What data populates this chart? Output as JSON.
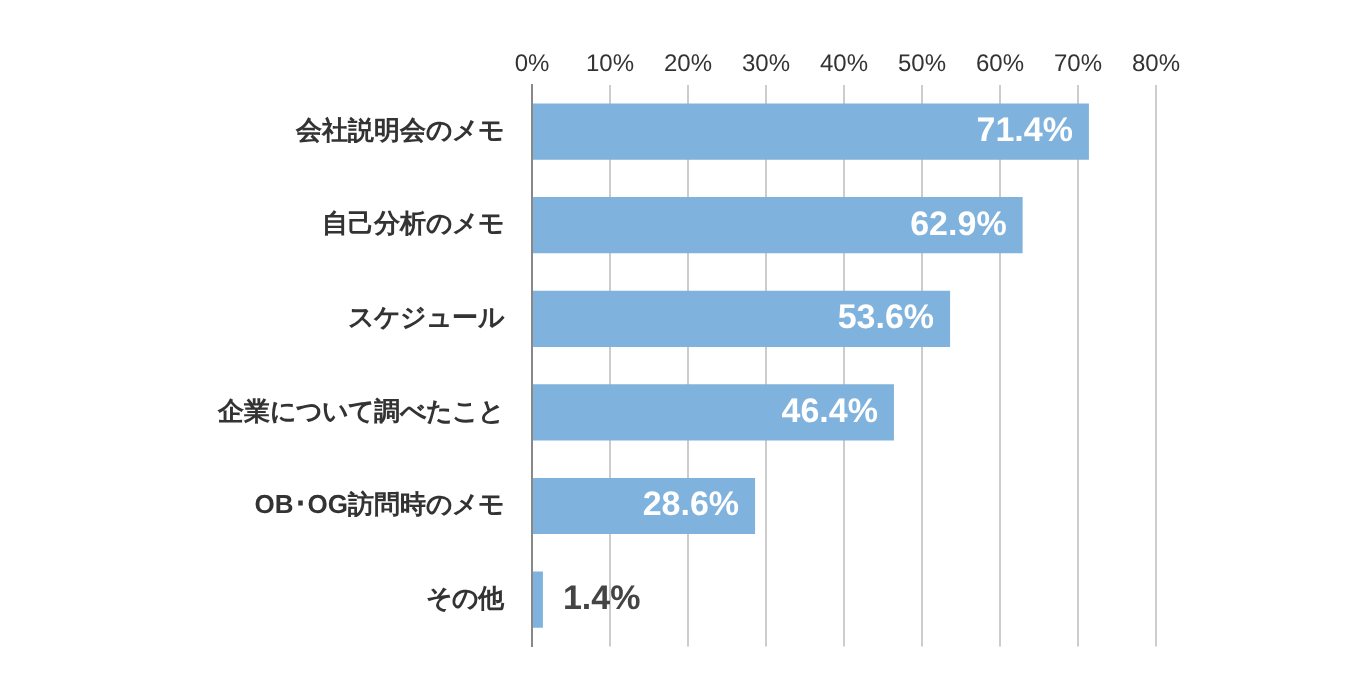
{
  "chart_data": {
    "type": "bar",
    "orientation": "horizontal",
    "categories": [
      "会社説明会のメモ",
      "自己分析のメモ",
      "スケジュール",
      "企業について調べたこと",
      "OB･OG訪問時のメモ",
      "その他"
    ],
    "values": [
      71.4,
      62.9,
      53.6,
      46.4,
      28.6,
      1.4
    ],
    "value_labels": [
      "71.4%",
      "62.9%",
      "53.6%",
      "46.4%",
      "28.6%",
      "1.4%"
    ],
    "color": "#7fb2dc",
    "xlim": [
      0,
      80
    ],
    "xticks": [
      {
        "value": 0,
        "label": "0%"
      },
      {
        "value": 10,
        "label": "10%"
      },
      {
        "value": 20,
        "label": "20%"
      },
      {
        "value": 30,
        "label": "30%"
      },
      {
        "value": 40,
        "label": "40%"
      },
      {
        "value": 50,
        "label": "50%"
      },
      {
        "value": 60,
        "label": "60%"
      },
      {
        "value": 70,
        "label": "70%"
      },
      {
        "value": 80,
        "label": "80%"
      }
    ],
    "grid": "x",
    "legend": false
  }
}
